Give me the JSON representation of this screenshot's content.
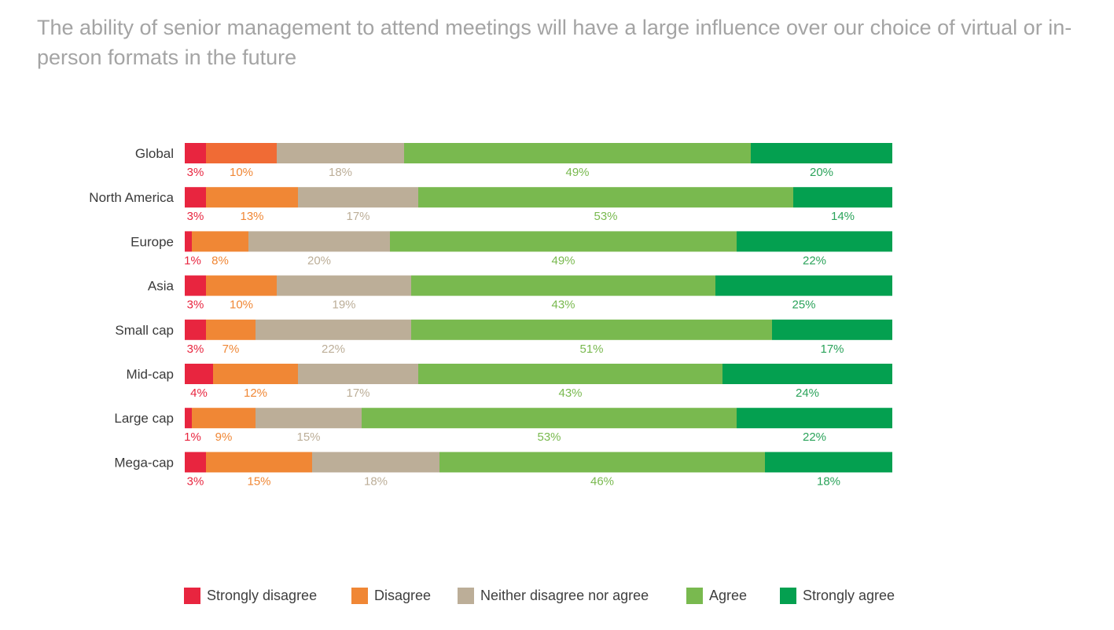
{
  "chart_data": {
    "type": "bar",
    "orientation": "horizontal",
    "stacked": true,
    "title": "The ability of senior management to attend meetings will have a large influence over our choice of virtual or in-person formats in the future",
    "categories": [
      "Global",
      "North America",
      "Europe",
      "Asia",
      "Small cap",
      "Mid-cap",
      "Large cap",
      "Mega-cap"
    ],
    "series": [
      {
        "name": "Strongly disagree",
        "color": "#e8253f",
        "label_color": "#e8253f",
        "values": [
          3,
          3,
          1,
          3,
          3,
          4,
          1,
          3
        ]
      },
      {
        "name": "Disagree",
        "color": "#f08735",
        "label_color": "#f08735",
        "values": [
          10,
          13,
          8,
          10,
          7,
          12,
          9,
          15
        ]
      },
      {
        "name": "Neither disagree nor agree",
        "color": "#bcae98",
        "label_color": "#bcae98",
        "values": [
          18,
          17,
          20,
          19,
          22,
          17,
          15,
          18
        ]
      },
      {
        "name": "Agree",
        "color": "#79b94f",
        "label_color": "#79b94f",
        "values": [
          49,
          53,
          49,
          43,
          51,
          43,
          53,
          46
        ]
      },
      {
        "name": "Strongly agree",
        "color": "#04a050",
        "label_color": "#2aa35a",
        "values": [
          20,
          14,
          22,
          25,
          17,
          24,
          22,
          18
        ]
      }
    ],
    "value_suffix": "%",
    "global_segment_override": {
      "category_index": 0,
      "series_index": 1,
      "color": "#f06b35"
    },
    "legend_position": "bottom",
    "grid": false
  }
}
